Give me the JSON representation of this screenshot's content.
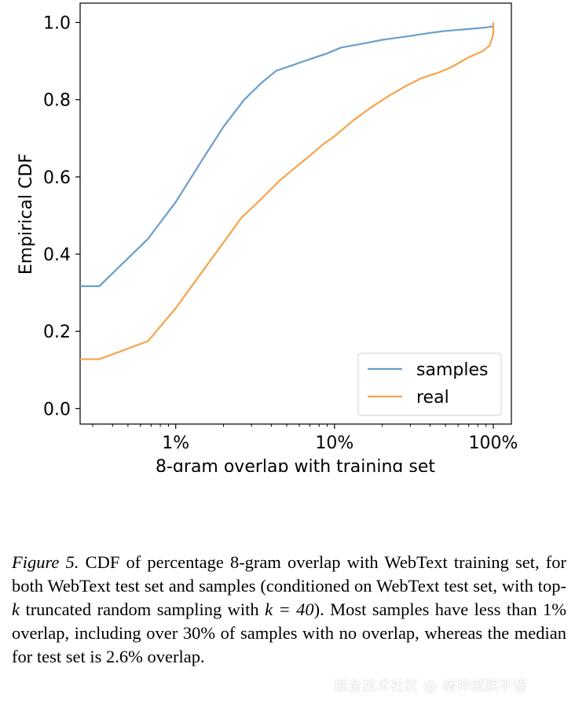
{
  "chart_data": {
    "type": "line",
    "title": "",
    "xlabel": "8-gram overlap with training set",
    "ylabel": "Empirical CDF",
    "x_scale": "log",
    "x_unit": "%",
    "xlim": [
      0.25,
      130
    ],
    "ylim": [
      -0.04,
      1.05
    ],
    "x_ticks": [
      {
        "value": 1,
        "label": "1%"
      },
      {
        "value": 10,
        "label": "10%"
      },
      {
        "value": 100,
        "label": "100%"
      }
    ],
    "y_ticks": [
      {
        "value": 0.0,
        "label": "0.0"
      },
      {
        "value": 0.2,
        "label": "0.2"
      },
      {
        "value": 0.4,
        "label": "0.4"
      },
      {
        "value": 0.6,
        "label": "0.6"
      },
      {
        "value": 0.8,
        "label": "0.8"
      },
      {
        "value": 1.0,
        "label": "1.0"
      }
    ],
    "legend_position": "bottom-right",
    "grid": false,
    "series": [
      {
        "name": "samples",
        "color": "#6a9ecb",
        "points": [
          [
            0.25,
            0.317
          ],
          [
            0.33,
            0.317
          ],
          [
            0.67,
            0.44
          ],
          [
            1.0,
            0.535
          ],
          [
            1.5,
            0.65
          ],
          [
            2.0,
            0.73
          ],
          [
            2.7,
            0.8
          ],
          [
            3.5,
            0.845
          ],
          [
            4.3,
            0.875
          ],
          [
            5.5,
            0.89
          ],
          [
            7.0,
            0.905
          ],
          [
            9.0,
            0.92
          ],
          [
            11,
            0.935
          ],
          [
            15,
            0.945
          ],
          [
            20,
            0.955
          ],
          [
            30,
            0.965
          ],
          [
            40,
            0.973
          ],
          [
            50,
            0.978
          ],
          [
            70,
            0.983
          ],
          [
            90,
            0.987
          ],
          [
            100,
            0.99
          ],
          [
            100,
            1.0
          ]
        ]
      },
      {
        "name": "real",
        "color": "#f5a34c",
        "points": [
          [
            0.25,
            0.128
          ],
          [
            0.33,
            0.128
          ],
          [
            0.67,
            0.175
          ],
          [
            1.0,
            0.26
          ],
          [
            1.5,
            0.36
          ],
          [
            2.0,
            0.43
          ],
          [
            2.6,
            0.495
          ],
          [
            3.5,
            0.545
          ],
          [
            4.5,
            0.59
          ],
          [
            5.5,
            0.62
          ],
          [
            7.0,
            0.655
          ],
          [
            8.5,
            0.685
          ],
          [
            10,
            0.705
          ],
          [
            13,
            0.745
          ],
          [
            17,
            0.78
          ],
          [
            22,
            0.81
          ],
          [
            28,
            0.835
          ],
          [
            35,
            0.855
          ],
          [
            45,
            0.87
          ],
          [
            55,
            0.885
          ],
          [
            70,
            0.91
          ],
          [
            85,
            0.925
          ],
          [
            95,
            0.94
          ],
          [
            100,
            0.97
          ],
          [
            100,
            1.0
          ]
        ]
      }
    ]
  },
  "caption": {
    "figure_label": "Figure 5.",
    "text_1": "CDF of percentage 8-gram overlap with WebText training set, for both WebText test set and samples (conditioned on WebText test set, with top-",
    "k_symbol": "k",
    "text_2": "truncated random sampling with",
    "k_equation": "k = 40",
    "text_3": "). Most samples have less than 1% overlap, including over 30% of samples with no overlap, whereas the median for test set is 2.6% overlap."
  },
  "watermark": "掘金技术社区 @ 诸神缄默不语"
}
